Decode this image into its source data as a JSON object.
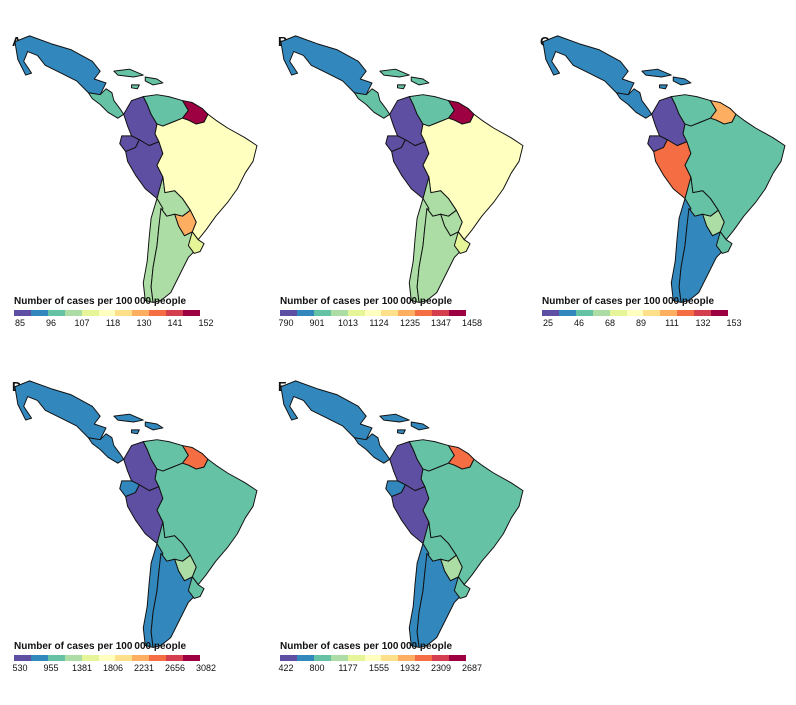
{
  "legend_title": "Number of cases per 100 000 people",
  "colors": {
    "palette": [
      "#5e4fa2",
      "#3288bd",
      "#66c2a5",
      "#abdda4",
      "#e6f598",
      "#ffffbf",
      "#fee08b",
      "#fdae61",
      "#f46d43",
      "#d53e4f",
      "#9e0142"
    ],
    "border": "#111111"
  },
  "panels": [
    {
      "letter": "A",
      "ticks": [
        "85",
        "96",
        "107",
        "118",
        "130",
        "141",
        "152"
      ],
      "regions": {
        "mexico": 1,
        "central_america": 2,
        "caribbean": 2,
        "colombia": 0,
        "venezuela": 2,
        "guianas": 10,
        "ecuador": 0,
        "peru": 0,
        "brazil": 5,
        "bolivia": 3,
        "paraguay": 7,
        "chile": 3,
        "argentina": 3,
        "uruguay": 4
      }
    },
    {
      "letter": "B",
      "ticks": [
        "790",
        "901",
        "1013",
        "1124",
        "1235",
        "1347",
        "1458"
      ],
      "regions": {
        "mexico": 1,
        "central_america": 2,
        "caribbean": 2,
        "colombia": 0,
        "venezuela": 2,
        "guianas": 10,
        "ecuador": 0,
        "peru": 0,
        "brazil": 5,
        "bolivia": 3,
        "paraguay": 3,
        "chile": 3,
        "argentina": 3,
        "uruguay": 4
      }
    },
    {
      "letter": "C",
      "ticks": [
        "25",
        "46",
        "68",
        "89",
        "111",
        "132",
        "153"
      ],
      "regions": {
        "mexico": 1,
        "central_america": 1,
        "caribbean": 1,
        "colombia": 0,
        "venezuela": 2,
        "guianas": 7,
        "ecuador": 0,
        "peru": 8,
        "brazil": 2,
        "bolivia": 2,
        "paraguay": 3,
        "chile": 1,
        "argentina": 1,
        "uruguay": 2
      }
    },
    {
      "letter": "D",
      "ticks": [
        "530",
        "955",
        "1381",
        "1806",
        "2231",
        "2656",
        "3082"
      ],
      "regions": {
        "mexico": 1,
        "central_america": 1,
        "caribbean": 1,
        "colombia": 0,
        "venezuela": 2,
        "guianas": 8,
        "ecuador": 1,
        "peru": 0,
        "brazil": 2,
        "bolivia": 2,
        "paraguay": 3,
        "chile": 1,
        "argentina": 1,
        "uruguay": 2
      }
    },
    {
      "letter": "E",
      "ticks": [
        "422",
        "800",
        "1177",
        "1555",
        "1932",
        "2309",
        "2687"
      ],
      "regions": {
        "mexico": 1,
        "central_america": 1,
        "caribbean": 1,
        "colombia": 0,
        "venezuela": 2,
        "guianas": 8,
        "ecuador": 1,
        "peru": 0,
        "brazil": 2,
        "bolivia": 2,
        "paraguay": 3,
        "chile": 1,
        "argentina": 1,
        "uruguay": 2
      }
    }
  ]
}
